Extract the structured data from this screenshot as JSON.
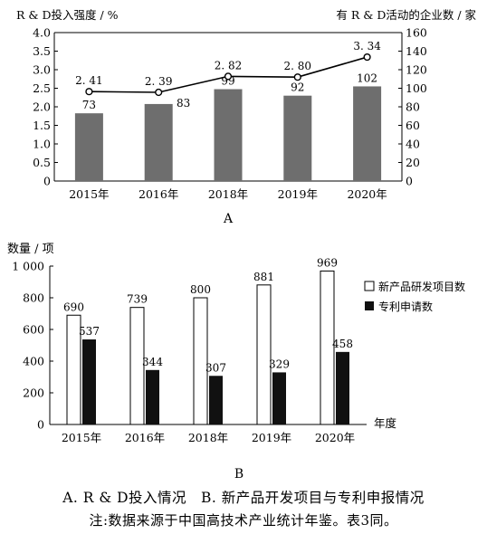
{
  "chart_data": [
    {
      "type": "bar+line",
      "panel_label": "A",
      "categories": [
        "2015年",
        "2016年",
        "2018年",
        "2019年",
        "2020年"
      ],
      "bar_series": {
        "name": "有R & D活动的企业数",
        "values": [
          73,
          83,
          99,
          92,
          102
        ]
      },
      "line_series": {
        "name": "R & D投入强度",
        "values": [
          2.41,
          2.39,
          2.82,
          2.8,
          3.34
        ],
        "labels": [
          "2. 41",
          "2. 39",
          "2. 82",
          "2. 80",
          "3. 34"
        ]
      },
      "ylabel_left": "R & D投入强度 / %",
      "ylabel_right": "有 R & D活动的企业数 / 家",
      "ylim_left": [
        0,
        4.0
      ],
      "ylim_right": [
        0,
        160
      ],
      "yticks_left": [
        "0",
        "0.5",
        "1.0",
        "1.5",
        "2.0",
        "2.5",
        "3.0",
        "3.5",
        "4.0"
      ],
      "yticks_right": [
        "0",
        "20",
        "40",
        "60",
        "80",
        "100",
        "120",
        "140",
        "160"
      ],
      "grid": false
    },
    {
      "type": "bar",
      "panel_label": "B",
      "categories": [
        "2015年",
        "2016年",
        "2018年",
        "2019年",
        "2020年"
      ],
      "series": [
        {
          "name": "新产品研发项目数",
          "values": [
            690,
            739,
            800,
            881,
            969
          ]
        },
        {
          "name": "专利申请数",
          "values": [
            537,
            344,
            307,
            329,
            458
          ]
        }
      ],
      "ylabel": "数量 / 项",
      "xlabel": "年度",
      "ylim": [
        0,
        1000
      ],
      "yticks": [
        "0",
        "200",
        "400",
        "600",
        "800",
        "1 000"
      ],
      "legend_position": "right",
      "grid": false
    }
  ],
  "captions": {
    "line1": "A. R & D投入情况　B. 新产品开发项目与专利申报情况",
    "line2": "注:数据来源于中国高技术产业统计年鉴。表3同。"
  },
  "colors": {
    "bar_gray": "#6e6e6e",
    "bar_black": "#111111",
    "bar_white": "#ffffff"
  }
}
